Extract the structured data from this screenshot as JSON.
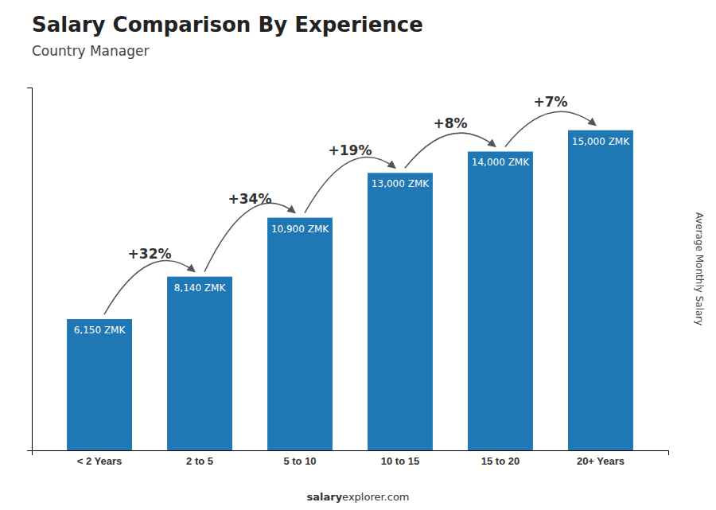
{
  "chart_data": {
    "type": "bar",
    "title": "Salary Comparison By Experience",
    "subtitle": "Country Manager",
    "ylabel": "Average Monthly Salary",
    "footer": [
      "salary",
      "explorer.com"
    ],
    "categories": [
      "< 2 Years",
      "2 to 5",
      "5 to 10",
      "10 to 15",
      "15 to 20",
      "20+ Years"
    ],
    "values": [
      6150,
      8140,
      10900,
      13000,
      14000,
      15000
    ],
    "value_labels": [
      "6,150 ZMK",
      "8,140 ZMK",
      "10,900 ZMK",
      "13,000 ZMK",
      "14,000 ZMK",
      "15,000 ZMK"
    ],
    "data_labels": true,
    "annotations": [
      "+32%",
      "+34%",
      "+19%",
      "+8%",
      "+7%"
    ],
    "ylim": [
      0,
      17000
    ],
    "grid": false,
    "tick_labels": "x"
  }
}
